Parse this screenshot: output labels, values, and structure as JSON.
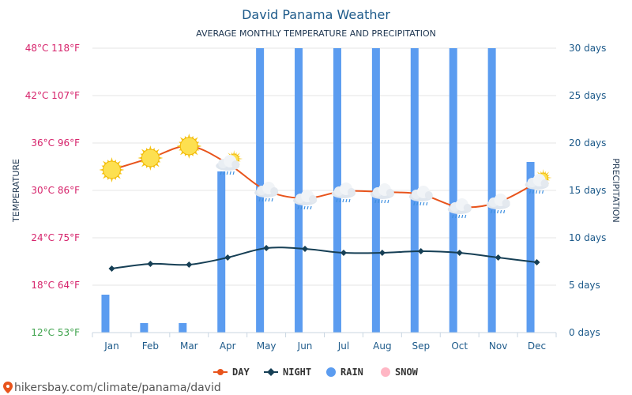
{
  "colors": {
    "day": "#e8541c",
    "night": "#163f55",
    "rain": "#5b9cf0",
    "snow": "#ffb6c4",
    "grid": "#e6e6e6",
    "left_tick": "#d6236b",
    "left_tick_bottom": "#3fa34d",
    "right_tick": "#1d5a8a"
  },
  "chart_data": {
    "type": "line",
    "title": "David Panama Weather",
    "subtitle": "AVERAGE MONTHLY TEMPERATURE AND PRECIPITATION",
    "ylabel_left": "TEMPERATURE",
    "ylabel_right": "PRECIPITATION",
    "categories": [
      "Jan",
      "Feb",
      "Mar",
      "Apr",
      "May",
      "Jun",
      "Jul",
      "Aug",
      "Sep",
      "Oct",
      "Nov",
      "Dec"
    ],
    "ylim_left": [
      12,
      48
    ],
    "ylim_right": [
      0,
      30
    ],
    "left_ticks": [
      "12°C 53°F",
      "18°C 64°F",
      "24°C 75°F",
      "30°C 86°F",
      "36°C 96°F",
      "42°C 107°F",
      "48°C 118°F"
    ],
    "right_ticks": [
      "0 days",
      "5 days",
      "10 days",
      "15 days",
      "20 days",
      "25 days",
      "30 days"
    ],
    "series": [
      {
        "name": "DAY",
        "axis": "left",
        "values": [
          32.6,
          34.1,
          35.6,
          33.4,
          30.0,
          29.0,
          29.9,
          29.8,
          29.5,
          27.9,
          28.5,
          31.0
        ]
      },
      {
        "name": "NIGHT",
        "axis": "left",
        "values": [
          20.1,
          20.7,
          20.6,
          21.5,
          22.7,
          22.6,
          22.1,
          22.1,
          22.3,
          22.1,
          21.5,
          20.9
        ]
      },
      {
        "name": "RAIN",
        "axis": "right",
        "type": "bar",
        "values": [
          4,
          1,
          1,
          17,
          30,
          30,
          30,
          30,
          30,
          30,
          30,
          18
        ]
      },
      {
        "name": "SNOW",
        "axis": "right",
        "type": "bar",
        "values": [
          0,
          0,
          0,
          0,
          0,
          0,
          0,
          0,
          0,
          0,
          0,
          0
        ]
      }
    ],
    "weather_icons": [
      "sun-icon",
      "sun-icon",
      "sun-icon",
      "cloud-sun-rain-icon",
      "cloud-rain-icon",
      "cloud-rain-icon",
      "cloud-rain-icon",
      "cloud-rain-icon",
      "cloud-rain-icon",
      "cloud-rain-icon",
      "cloud-rain-icon",
      "cloud-sun-rain-icon"
    ],
    "grid": true,
    "legend": "bottom-center"
  },
  "source_url": "hikersbay.com/climate/panama/david"
}
